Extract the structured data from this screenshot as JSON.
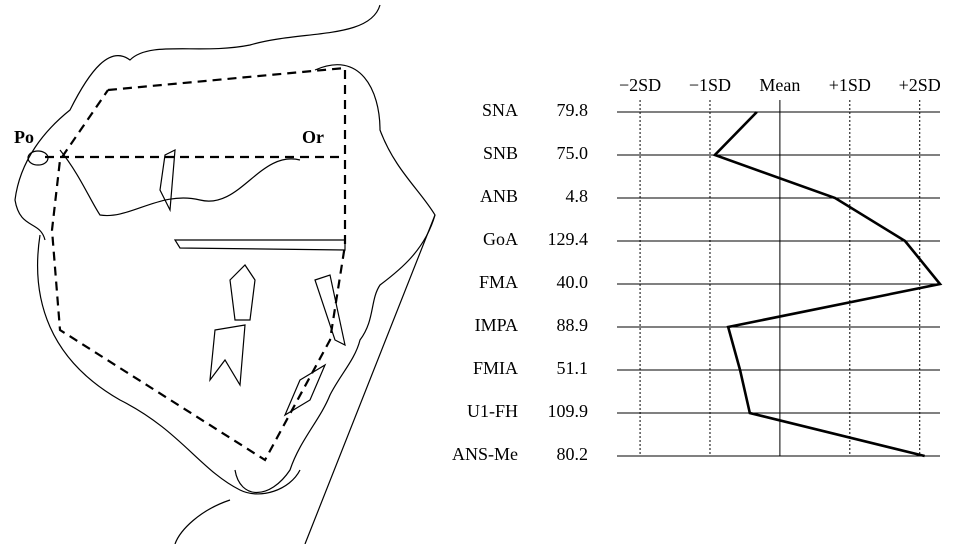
{
  "tracing": {
    "labels": [
      "Po",
      "Or"
    ]
  },
  "chart_data": {
    "type": "line",
    "categories": [
      "SNA",
      "SNB",
      "ANB",
      "GoA",
      "FMA",
      "IMPA",
      "FMIA",
      "U1-FH",
      "ANS-Me"
    ],
    "row_values": [
      "79.8",
      "75.0",
      "4.8",
      "129.4",
      "40.0",
      "88.9",
      "51.1",
      "109.9",
      "80.2"
    ],
    "series": [
      {
        "color": "#000000",
        "values": [
          -0.33,
          -0.93,
          0.79,
          1.79,
          2.29,
          -0.74,
          -0.57,
          -0.43,
          2.07
        ]
      }
    ],
    "xlim": [
      -2.33,
      2.29
    ],
    "xticks": [
      {
        "value": -2,
        "label": "−2SD"
      },
      {
        "value": -1,
        "label": "−1SD"
      },
      {
        "value": 0,
        "label": "Mean"
      },
      {
        "value": 1,
        "label": "+1SD"
      },
      {
        "value": 2,
        "label": "+2SD"
      }
    ],
    "grid": true
  }
}
